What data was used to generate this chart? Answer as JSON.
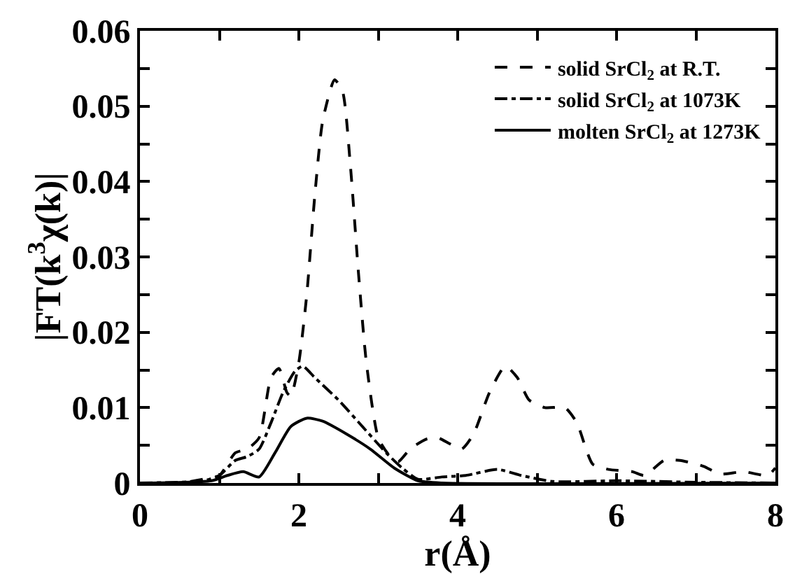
{
  "chart_data": {
    "type": "line",
    "xlabel": "r(Å)",
    "ylabel": "|FT(k$^{3}$χ(k)|",
    "xlim": [
      0,
      8
    ],
    "ylim": [
      0,
      0.06
    ],
    "xticks": [
      0,
      {
        "value": 1,
        "label": null
      },
      2,
      {
        "value": 3,
        "label": null
      },
      4,
      {
        "value": 5,
        "label": null
      },
      6,
      {
        "value": 7,
        "label": null
      },
      8
    ],
    "yticks": [
      0,
      {
        "value": 0.005,
        "label": null
      },
      0.01,
      {
        "value": 0.015,
        "label": null
      },
      0.02,
      {
        "value": 0.025,
        "label": null
      },
      0.03,
      {
        "value": 0.035,
        "label": null
      },
      0.04,
      {
        "value": 0.045,
        "label": null
      },
      0.05,
      {
        "value": 0.055,
        "label": null
      },
      0.06
    ],
    "legend": "top right",
    "marker": "none",
    "series": [
      {
        "name": "solid SrCl$_{2}$ at R.T.",
        "color": "#000000",
        "line_style": "dashed",
        "x": [
          0,
          0.5,
          0.8,
          1.0,
          1.2,
          1.35,
          1.5,
          1.65,
          1.75,
          1.85,
          1.9,
          2.0,
          2.1,
          2.2,
          2.3,
          2.45,
          2.55,
          2.65,
          2.75,
          2.85,
          3.0,
          3.15,
          3.25,
          3.4,
          3.6,
          3.75,
          3.9,
          4.05,
          4.2,
          4.4,
          4.6,
          4.75,
          4.9,
          5.1,
          5.35,
          5.5,
          5.7,
          5.9,
          6.2,
          6.35,
          6.6,
          6.8,
          7.1,
          7.3,
          7.6,
          7.9,
          8.0
        ],
        "values": [
          0,
          0,
          0.0005,
          0.001,
          0.004,
          0.0045,
          0.006,
          0.014,
          0.0152,
          0.012,
          0.0115,
          0.016,
          0.025,
          0.038,
          0.048,
          0.0535,
          0.052,
          0.042,
          0.028,
          0.016,
          0.006,
          0.0035,
          0.0028,
          0.0045,
          0.0058,
          0.006,
          0.0052,
          0.0045,
          0.0065,
          0.012,
          0.0155,
          0.014,
          0.011,
          0.01,
          0.01,
          0.008,
          0.0025,
          0.0018,
          0.0015,
          0.001,
          0.003,
          0.003,
          0.0022,
          0.0012,
          0.0015,
          0.001,
          0.002
        ]
      },
      {
        "name": "solid SrCl$_{2}$ at 1073K",
        "color": "#000000",
        "line_style": "dashdot",
        "x": [
          0,
          0.8,
          1.0,
          1.2,
          1.35,
          1.5,
          1.65,
          1.8,
          1.95,
          2.05,
          2.2,
          2.5,
          2.8,
          3.1,
          3.3,
          3.5,
          3.8,
          4.1,
          4.5,
          4.8,
          5.2,
          6,
          7,
          8
        ],
        "values": [
          0,
          0.0003,
          0.001,
          0.003,
          0.0035,
          0.0045,
          0.008,
          0.012,
          0.0148,
          0.0155,
          0.014,
          0.011,
          0.0075,
          0.004,
          0.002,
          0.0005,
          0.0008,
          0.001,
          0.0018,
          0.001,
          0.0002,
          0.0003,
          0.0001,
          0
        ]
      },
      {
        "name": "molten SrCl$_{2}$ at 1273K",
        "color": "#000000",
        "line_style": "solid",
        "x": [
          0,
          0.9,
          1.1,
          1.3,
          1.5,
          1.7,
          1.9,
          2.1,
          2.3,
          2.6,
          2.9,
          3.2,
          3.5,
          3.8,
          8
        ],
        "values": [
          0,
          0.0003,
          0.001,
          0.0015,
          0.0008,
          0.004,
          0.0075,
          0.0086,
          0.0082,
          0.0065,
          0.0045,
          0.002,
          0.0003,
          0,
          0
        ]
      }
    ]
  }
}
